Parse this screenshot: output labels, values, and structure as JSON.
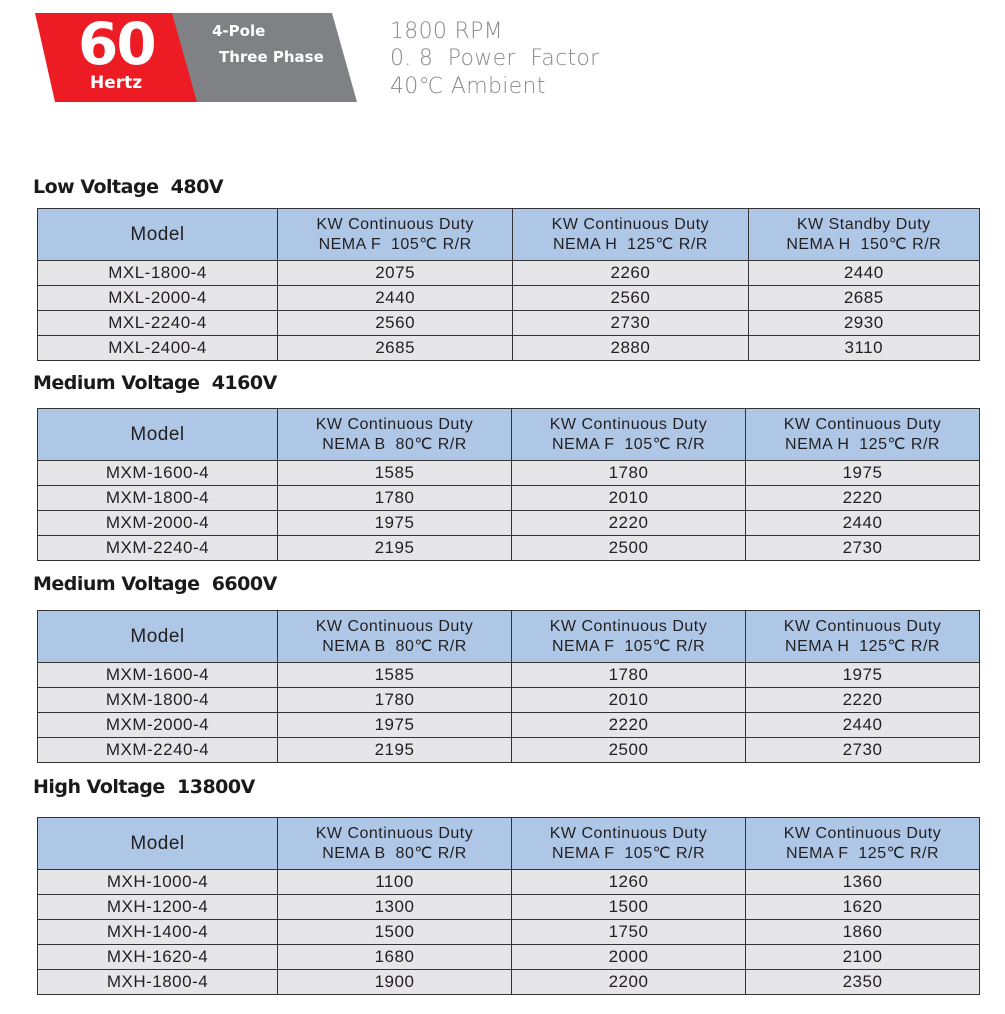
{
  "header": {
    "frequency": "60",
    "frequency_unit": "Hertz",
    "poles": "4-Pole",
    "phase": "Three Phase",
    "specs": [
      "1800 RPM",
      "0. 8  Power  Factor",
      "40℃ Ambient"
    ],
    "colors": {
      "red": "#ed1c24",
      "gray": "#808184",
      "table_header": "#aec7e6",
      "table_row": "#e6e6e8"
    }
  },
  "sections": [
    {
      "title": "Low Voltage  480V",
      "columns": [
        "Model",
        [
          "KW Continuous Duty",
          "NEMA F  105℃ R/R"
        ],
        [
          "KW Continuous Duty",
          "NEMA H  125℃ R/R"
        ],
        [
          "KW Standby Duty",
          "NEMA H  150℃ R/R"
        ]
      ],
      "rows": [
        [
          "MXL-1800-4",
          "2075",
          "2260",
          "2440"
        ],
        [
          "MXL-2000-4",
          "2440",
          "2560",
          "2685"
        ],
        [
          "MXL-2240-4",
          "2560",
          "2730",
          "2930"
        ],
        [
          "MXL-2400-4",
          "2685",
          "2880",
          "3110"
        ]
      ]
    },
    {
      "title": "Medium Voltage  4160V",
      "columns": [
        "Model",
        [
          "KW Continuous Duty",
          "NEMA B  80℃ R/R"
        ],
        [
          "KW Continuous Duty",
          "NEMA F  105℃ R/R"
        ],
        [
          "KW Continuous Duty",
          "NEMA H  125℃ R/R"
        ]
      ],
      "rows": [
        [
          "MXM-1600-4",
          "1585",
          "1780",
          "1975"
        ],
        [
          "MXM-1800-4",
          "1780",
          "2010",
          "2220"
        ],
        [
          "MXM-2000-4",
          "1975",
          "2220",
          "2440"
        ],
        [
          "MXM-2240-4",
          "2195",
          "2500",
          "2730"
        ]
      ]
    },
    {
      "title": "Medium Voltage  6600V",
      "columns": [
        "Model",
        [
          "KW Continuous Duty",
          "NEMA B  80℃ R/R"
        ],
        [
          "KW Continuous Duty",
          "NEMA F  105℃ R/R"
        ],
        [
          "KW Continuous Duty",
          "NEMA H  125℃ R/R"
        ]
      ],
      "rows": [
        [
          "MXM-1600-4",
          "1585",
          "1780",
          "1975"
        ],
        [
          "MXM-1800-4",
          "1780",
          "2010",
          "2220"
        ],
        [
          "MXM-2000-4",
          "1975",
          "2220",
          "2440"
        ],
        [
          "MXM-2240-4",
          "2195",
          "2500",
          "2730"
        ]
      ]
    },
    {
      "title": "High Voltage  13800V",
      "columns": [
        "Model",
        [
          "KW Continuous Duty",
          "NEMA B  80℃ R/R"
        ],
        [
          "KW Continuous Duty",
          "NEMA F  105℃ R/R"
        ],
        [
          "KW Continuous Duty",
          "NEMA F  125℃ R/R"
        ]
      ],
      "rows": [
        [
          "MXH-1000-4",
          "1100",
          "1260",
          "1360"
        ],
        [
          "MXH-1200-4",
          "1300",
          "1500",
          "1620"
        ],
        [
          "MXH-1400-4",
          "1500",
          "1750",
          "1860"
        ],
        [
          "MXH-1620-4",
          "1680",
          "2000",
          "2100"
        ],
        [
          "MXH-1800-4",
          "1900",
          "2200",
          "2350"
        ]
      ]
    }
  ]
}
